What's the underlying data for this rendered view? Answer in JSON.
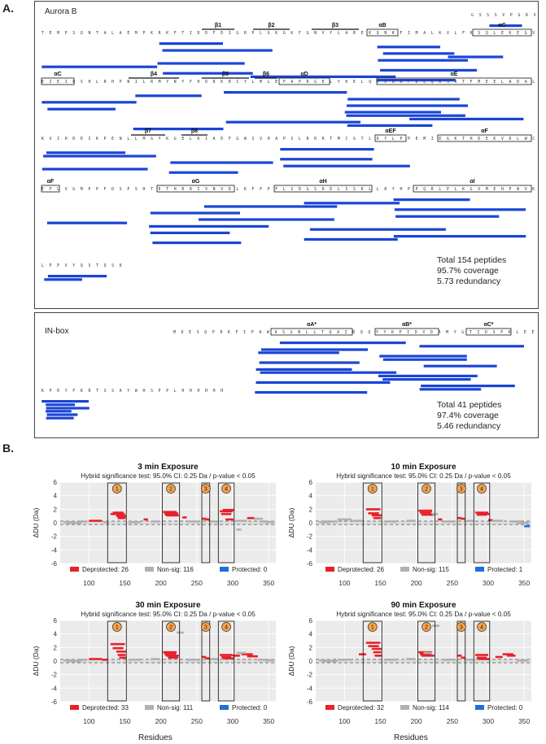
{
  "panel_a": {
    "letter": "A.",
    "aurora_b": {
      "title": "Aurora B",
      "stats": [
        "Total 154 peptides",
        "95.7% coverage",
        "5.73 redundancy"
      ],
      "seq_rows": [
        "G S S S V P G R V A V I",
        "T E M P S Q N T A L A E M P K R K F T I D D F D I G R P L G K G K F G N V Y L A R E K Q N K F I M A L K V L F K S Q L E K E G V E H Q L R R",
        "E I E I Q S H L R H P N I L R M Y N Y F H D R K R I Y L M L E F A P R G E L Y K E L Q K H G R F D E Q R S A T F M E E L A D A L H Y C H E R",
        "K V I H R D I K P E N L L M G Y K G E L K I A D F G W S V H A P S L R R R T M C G T L D Y L P P E M I E G K T H D E K V D L W C A G V L C Y",
        "E F L V G M P P F D S P S H T E T H R R I V N V D L K F P P F L S D G S K D L I S K L L R Y H P P Q R L P L K G V M E H P W V K A N S R R V",
        "L P P V Y Q S T Q S K"
      ],
      "ss_labels": [
        "β1",
        "β2",
        "β3",
        "αB",
        "αC",
        "αC",
        "β4",
        "β5",
        "β6",
        "αD",
        "αE",
        "β7",
        "β8",
        "αEF",
        "αF",
        "αF",
        "αG",
        "αH",
        "αI"
      ]
    },
    "in_box": {
      "title": "IN-box",
      "stats": [
        "Total 41 peptides",
        "97.4% coverage",
        "5.46 redundancy"
      ],
      "seq_rows": [
        "M D E S Q P R K F I P A W A S G N L L T Q A I R Q Q Y Y K P I D V D R M Y G T I D S P K L E E L F N K S",
        "K P R Y F K R T S S A Y W H S P P L H H H H H H"
      ],
      "ss_labels": [
        "αA*",
        "αB*",
        "αC*"
      ]
    }
  },
  "panel_b": {
    "letter": "B.",
    "subtitle": "Hybrid significance test: 95.0% CI: 0.25 Da / p-value < 0.05",
    "ylabel": "ΔDU (Da)",
    "xlabel": "Residues",
    "region_labels": [
      "1",
      "2",
      "3",
      "4"
    ],
    "colors": {
      "deprotected": "#e8202a",
      "nonsig": "#b0b0b0",
      "protected": "#1e6fd9"
    }
  },
  "chart_data": [
    {
      "type": "bar",
      "title": "3 min Exposure",
      "ylim": [
        -6,
        6
      ],
      "xlim": [
        60,
        360
      ],
      "x_ticks": [
        100,
        150,
        200,
        250,
        300,
        350
      ],
      "y_ticks": [
        -6,
        -4,
        -2,
        0,
        2,
        4,
        6
      ],
      "legend": [
        {
          "label": "Deprotected: 26",
          "color": "#e8202a"
        },
        {
          "label": "Non-sig: 116",
          "color": "#b0b0b0"
        },
        {
          "label": "Protected: 0",
          "color": "#1e6fd9"
        }
      ],
      "regions": [
        [
          126,
          152
        ],
        [
          202,
          226
        ],
        [
          257,
          268
        ],
        [
          280,
          302
        ]
      ],
      "series": [
        {
          "name": "Deprotected",
          "color": "#e8202a",
          "segments": [
            [
              100,
              118,
              0.3
            ],
            [
              130,
              150,
              1.3
            ],
            [
              133,
              148,
              1.5
            ],
            [
              138,
              152,
              1.0
            ],
            [
              140,
              151,
              0.7
            ],
            [
              176,
              182,
              0.5
            ],
            [
              203,
              222,
              1.6
            ],
            [
              205,
              221,
              1.3
            ],
            [
              207,
              225,
              1.1
            ],
            [
              210,
              224,
              1.4
            ],
            [
              230,
              236,
              0.8
            ],
            [
              257,
              263,
              0.6
            ],
            [
              262,
              268,
              0.5
            ],
            [
              282,
              300,
              1.7
            ],
            [
              284,
              298,
              1.3
            ],
            [
              286,
              302,
              1.9
            ],
            [
              290,
              301,
              0.5
            ],
            [
              320,
              330,
              0.7
            ]
          ]
        },
        {
          "name": "Non-sig",
          "color": "#b0b0b0",
          "segments": [
            [
              65,
              80,
              0.1
            ],
            [
              70,
              90,
              0.0
            ],
            [
              85,
              98,
              0.2
            ],
            [
              120,
              128,
              0.1
            ],
            [
              155,
              172,
              0.1
            ],
            [
              186,
              198,
              0.2
            ],
            [
              236,
              254,
              0.2
            ],
            [
              270,
              280,
              0.2
            ],
            [
              303,
              320,
              0.3
            ],
            [
              305,
              312,
              -1.0
            ],
            [
              330,
              342,
              0.6
            ],
            [
              337,
              350,
              0.2
            ],
            [
              345,
              358,
              0.1
            ]
          ]
        }
      ]
    },
    {
      "type": "bar",
      "title": "10 min Exposure",
      "ylim": [
        -6,
        6
      ],
      "xlim": [
        60,
        360
      ],
      "x_ticks": [
        100,
        150,
        200,
        250,
        300,
        350
      ],
      "y_ticks": [
        -6,
        -4,
        -2,
        0,
        2,
        4,
        6
      ],
      "legend": [
        {
          "label": "Deprotected: 26",
          "color": "#e8202a"
        },
        {
          "label": "Non-sig: 115",
          "color": "#b0b0b0"
        },
        {
          "label": "Protected: 1",
          "color": "#1e6fd9"
        }
      ],
      "regions": [
        [
          126,
          152
        ],
        [
          202,
          226
        ],
        [
          257,
          268
        ],
        [
          280,
          302
        ]
      ],
      "series": [
        {
          "name": "Deprotected",
          "color": "#e8202a",
          "segments": [
            [
              130,
              150,
              2.0
            ],
            [
              133,
              148,
              1.4
            ],
            [
              138,
              152,
              1.1
            ],
            [
              140,
              151,
              0.7
            ],
            [
              203,
              222,
              1.8
            ],
            [
              205,
              221,
              1.5
            ],
            [
              207,
              225,
              1.2
            ],
            [
              230,
              236,
              0.5
            ],
            [
              257,
              263,
              0.7
            ],
            [
              262,
              268,
              0.6
            ],
            [
              282,
              300,
              1.5
            ],
            [
              284,
              298,
              1.2
            ],
            [
              286,
              302,
              1.3
            ],
            [
              300,
              306,
              0.4
            ]
          ]
        },
        {
          "name": "Non-sig",
          "color": "#b0b0b0",
          "segments": [
            [
              65,
              80,
              0.1
            ],
            [
              70,
              90,
              0.2
            ],
            [
              90,
              110,
              0.5
            ],
            [
              112,
              125,
              0.3
            ],
            [
              155,
              172,
              0.2
            ],
            [
              186,
              198,
              0.3
            ],
            [
              222,
              230,
              1.3
            ],
            [
              236,
              254,
              0.2
            ],
            [
              270,
              280,
              0.3
            ],
            [
              305,
              320,
              0.3
            ],
            [
              330,
              345,
              0.2
            ],
            [
              340,
              356,
              0.0
            ]
          ]
        },
        {
          "name": "Protected",
          "color": "#1e6fd9",
          "segments": [
            [
              350,
              358,
              -0.5
            ]
          ]
        }
      ]
    },
    {
      "type": "bar",
      "title": "30 min Exposure",
      "ylim": [
        -6,
        6
      ],
      "xlim": [
        60,
        360
      ],
      "x_ticks": [
        100,
        150,
        200,
        250,
        300,
        350
      ],
      "y_ticks": [
        -6,
        -4,
        -2,
        0,
        2,
        4,
        6
      ],
      "legend": [
        {
          "label": "Deprotected: 33",
          "color": "#e8202a"
        },
        {
          "label": "Non-sig: 111",
          "color": "#b0b0b0"
        },
        {
          "label": "Protected: 0",
          "color": "#1e6fd9"
        }
      ],
      "regions": [
        [
          126,
          152
        ],
        [
          202,
          226
        ],
        [
          257,
          268
        ],
        [
          280,
          302
        ]
      ],
      "series": [
        {
          "name": "Deprotected",
          "color": "#e8202a",
          "segments": [
            [
              100,
              118,
              0.3
            ],
            [
              118,
              126,
              0.2
            ],
            [
              130,
              150,
              2.5
            ],
            [
              133,
              148,
              1.9
            ],
            [
              138,
              152,
              1.4
            ],
            [
              140,
              151,
              0.9
            ],
            [
              142,
              152,
              0.5
            ],
            [
              203,
              222,
              1.3
            ],
            [
              205,
              221,
              1.0
            ],
            [
              207,
              225,
              0.8
            ],
            [
              210,
              224,
              0.5
            ],
            [
              257,
              263,
              0.6
            ],
            [
              262,
              268,
              0.4
            ],
            [
              282,
              300,
              0.9
            ],
            [
              284,
              298,
              0.6
            ],
            [
              286,
              302,
              0.4
            ],
            [
              300,
              310,
              0.8
            ],
            [
              312,
              328,
              1.0
            ],
            [
              320,
              335,
              0.7
            ]
          ]
        },
        {
          "name": "Non-sig",
          "color": "#b0b0b0",
          "segments": [
            [
              65,
              80,
              0.1
            ],
            [
              70,
              90,
              0.0
            ],
            [
              85,
              98,
              0.2
            ],
            [
              155,
              172,
              0.2
            ],
            [
              186,
              198,
              0.3
            ],
            [
              222,
              232,
              4.2
            ],
            [
              236,
              254,
              0.2
            ],
            [
              270,
              280,
              0.3
            ],
            [
              305,
              318,
              1.2
            ],
            [
              335,
              350,
              0.2
            ],
            [
              345,
              358,
              0.1
            ]
          ]
        }
      ]
    },
    {
      "type": "bar",
      "title": "90 min Exposure",
      "ylim": [
        -6,
        6
      ],
      "xlim": [
        60,
        360
      ],
      "x_ticks": [
        100,
        150,
        200,
        250,
        300,
        350
      ],
      "y_ticks": [
        -6,
        -4,
        -2,
        0,
        2,
        4,
        6
      ],
      "legend": [
        {
          "label": "Deprotected: 32",
          "color": "#e8202a"
        },
        {
          "label": "Non-sig: 114",
          "color": "#b0b0b0"
        },
        {
          "label": "Protected: 0",
          "color": "#1e6fd9"
        }
      ],
      "regions": [
        [
          126,
          152
        ],
        [
          202,
          226
        ],
        [
          257,
          268
        ],
        [
          280,
          302
        ]
      ],
      "series": [
        {
          "name": "Deprotected",
          "color": "#e8202a",
          "segments": [
            [
              130,
              150,
              2.7
            ],
            [
              133,
              148,
              2.2
            ],
            [
              138,
              152,
              1.8
            ],
            [
              140,
              151,
              1.3
            ],
            [
              142,
              152,
              0.8
            ],
            [
              120,
              130,
              1.0
            ],
            [
              203,
              222,
              1.3
            ],
            [
              205,
              221,
              1.0
            ],
            [
              207,
              225,
              0.8
            ],
            [
              257,
              263,
              0.8
            ],
            [
              262,
              268,
              0.5
            ],
            [
              282,
              300,
              0.9
            ],
            [
              284,
              298,
              0.5
            ],
            [
              286,
              302,
              0.3
            ],
            [
              310,
              320,
              0.6
            ],
            [
              320,
              335,
              1.0
            ],
            [
              326,
              338,
              0.8
            ]
          ]
        },
        {
          "name": "Non-sig",
          "color": "#b0b0b0",
          "segments": [
            [
              65,
              80,
              0.1
            ],
            [
              70,
              90,
              0.0
            ],
            [
              90,
              110,
              0.2
            ],
            [
              155,
              172,
              0.2
            ],
            [
              186,
              198,
              0.3
            ],
            [
              210,
              222,
              1.2
            ],
            [
              222,
              232,
              5.2
            ],
            [
              236,
              254,
              0.2
            ],
            [
              270,
              280,
              0.2
            ],
            [
              340,
              356,
              0.1
            ]
          ]
        }
      ]
    }
  ]
}
